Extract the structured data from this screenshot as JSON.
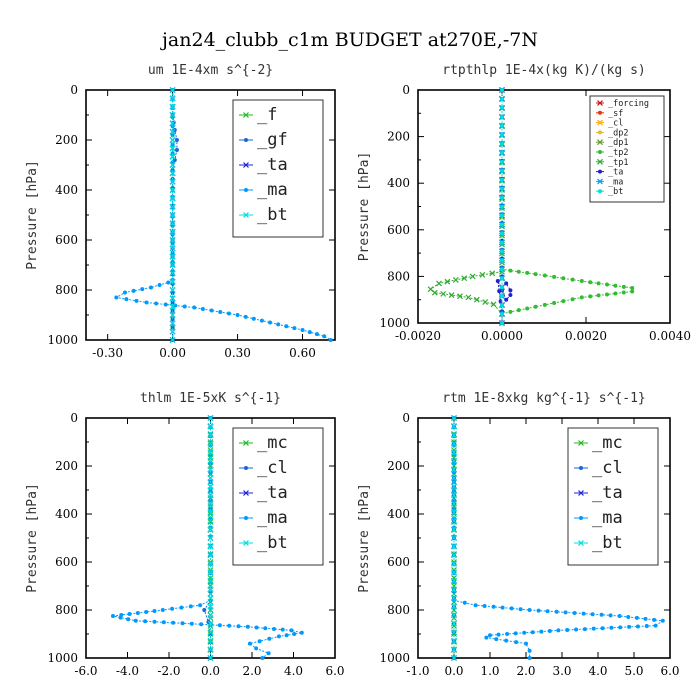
{
  "title": "jan24_clubb_c1m  BUDGET at270E,-7N",
  "chart_data": [
    {
      "type": "line",
      "title": "um   1E-4xm s^{-2}",
      "ylabel": "Pressure [hPa]",
      "xlim": [
        -0.4,
        0.75
      ],
      "ylim": [
        1000,
        0
      ],
      "y_reversed": true,
      "xticks": [
        "-0.30",
        "0.00",
        "0.30",
        "0.60"
      ],
      "xtick_values": [
        -0.3,
        0,
        0.3,
        0.6
      ],
      "yticks": [
        "0",
        "200",
        "400",
        "600",
        "800",
        "1000"
      ],
      "ytick_values": [
        0,
        200,
        400,
        600,
        800,
        1000
      ],
      "legend_position": "top-right",
      "legend_size": "large",
      "series": [
        {
          "name": "_f",
          "color": "#22bb22",
          "x": [
            0,
            0,
            0,
            0,
            0,
            0,
            0,
            0,
            0,
            0,
            0,
            0
          ],
          "y": [
            0,
            100,
            200,
            300,
            400,
            500,
            600,
            700,
            800,
            900,
            950,
            1000
          ]
        },
        {
          "name": "_gf",
          "color": "#1a66dd",
          "x": [
            0,
            0,
            0.01,
            0.02,
            0.02,
            0.01,
            0,
            0,
            0,
            0,
            0,
            0
          ],
          "y": [
            0,
            100,
            160,
            200,
            240,
            280,
            320,
            500,
            700,
            850,
            950,
            1000
          ]
        },
        {
          "name": "_ta",
          "color": "#2222dd",
          "x": [
            0,
            0,
            0,
            0,
            0,
            0
          ],
          "y": [
            0,
            200,
            400,
            600,
            800,
            1000
          ]
        },
        {
          "name": "_ma",
          "color": "#0099ff",
          "x": [
            0,
            0,
            -0.02,
            -0.1,
            -0.22,
            -0.26,
            -0.12,
            0.1,
            0.3,
            0.45,
            0.6,
            0.7,
            0.73
          ],
          "y": [
            0,
            760,
            770,
            790,
            810,
            830,
            850,
            870,
            900,
            930,
            960,
            985,
            1000
          ]
        },
        {
          "name": "_bt",
          "color": "#00dddd",
          "x": [
            0,
            0,
            0,
            0,
            0,
            0
          ],
          "y": [
            0,
            200,
            400,
            600,
            800,
            1000
          ]
        }
      ]
    },
    {
      "type": "line",
      "title": "rtpthlp   1E-4x(kg K)/(kg s)",
      "ylabel": "Pressure [hPa]",
      "xlim": [
        -0.002,
        0.004
      ],
      "ylim": [
        1000,
        0
      ],
      "y_reversed": true,
      "xticks": [
        "-0.0020",
        "0.0000",
        "0.0020",
        "0.0040"
      ],
      "xtick_values": [
        -0.002,
        0,
        0.002,
        0.004
      ],
      "yticks": [
        "0",
        "200",
        "400",
        "600",
        "800",
        "1000"
      ],
      "ytick_values": [
        0,
        200,
        400,
        600,
        800,
        1000
      ],
      "legend_position": "top-right",
      "legend_size": "small",
      "series": [
        {
          "name": "_forcing",
          "color": "#cc1111",
          "x": [
            0,
            0
          ],
          "y": [
            0,
            1000
          ]
        },
        {
          "name": "_sf",
          "color": "#ee3300",
          "x": [
            0,
            0
          ],
          "y": [
            0,
            1000
          ]
        },
        {
          "name": "_cl",
          "color": "#ffaa00",
          "x": [
            0,
            0
          ],
          "y": [
            0,
            1000
          ]
        },
        {
          "name": "_dp2",
          "color": "#ddbb33",
          "x": [
            0,
            0
          ],
          "y": [
            0,
            1000
          ]
        },
        {
          "name": "_dp1",
          "color": "#669933",
          "x": [
            0,
            0
          ],
          "y": [
            0,
            1000
          ]
        },
        {
          "name": "_tp2",
          "color": "#33bb33",
          "x": [
            0,
            0,
            0.0008,
            0.0019,
            0.0031,
            0.0031,
            0.0019,
            0.0008,
            0,
            0
          ],
          "y": [
            0,
            770,
            790,
            820,
            850,
            865,
            890,
            930,
            960,
            1000
          ]
        },
        {
          "name": "_tp1",
          "color": "#33aa33",
          "x": [
            0,
            0,
            -0.0007,
            -0.0015,
            -0.0017,
            -0.0016,
            -0.0008,
            -0.0002,
            0,
            0
          ],
          "y": [
            0,
            780,
            800,
            830,
            855,
            870,
            890,
            920,
            960,
            1000
          ]
        },
        {
          "name": "_ta",
          "color": "#2222cc",
          "x": [
            0,
            0,
            0.0001,
            0.0002,
            0.0002,
            0.0001,
            -0.0001,
            0,
            0
          ],
          "y": [
            0,
            800,
            830,
            860,
            880,
            900,
            820,
            950,
            1000
          ]
        },
        {
          "name": "_ma",
          "color": "#0099ff",
          "x": [
            0,
            0
          ],
          "y": [
            0,
            1000
          ]
        },
        {
          "name": "_bt",
          "color": "#00dddd",
          "x": [
            0,
            0
          ],
          "y": [
            0,
            1000
          ]
        }
      ]
    },
    {
      "type": "line",
      "title": "thlm   1E-5xK s^{-1}",
      "ylabel": "Pressure [hPa]",
      "xlim": [
        -6,
        6
      ],
      "ylim": [
        1000,
        0
      ],
      "y_reversed": true,
      "xticks": [
        "-6.0",
        "-4.0",
        "-2.0",
        "0.0",
        "2.0",
        "4.0",
        "6.0"
      ],
      "xtick_values": [
        -6,
        -4,
        -2,
        0,
        2,
        4,
        6
      ],
      "yticks": [
        "0",
        "200",
        "400",
        "600",
        "800",
        "1000"
      ],
      "ytick_values": [
        0,
        200,
        400,
        600,
        800,
        1000
      ],
      "legend_position": "top-right",
      "legend_size": "large",
      "series": [
        {
          "name": "_mc",
          "color": "#22bb22",
          "x": [
            0,
            0,
            0,
            0,
            0,
            0,
            0,
            0,
            0,
            0,
            0
          ],
          "y": [
            0,
            100,
            200,
            300,
            400,
            500,
            600,
            700,
            800,
            900,
            1000
          ]
        },
        {
          "name": "_cl",
          "color": "#1a66dd",
          "x": [
            0,
            0,
            -0.3,
            -0.1,
            0,
            0
          ],
          "y": [
            0,
            760,
            800,
            850,
            900,
            1000
          ]
        },
        {
          "name": "_ta",
          "color": "#2222dd",
          "x": [
            0,
            0,
            0,
            0,
            0
          ],
          "y": [
            0,
            250,
            500,
            750,
            1000
          ]
        },
        {
          "name": "_ma",
          "color": "#0099ff",
          "x": [
            0,
            0,
            -0.5,
            -2.3,
            -4.7,
            -3.6,
            1.8,
            3.9,
            4.4,
            3.3,
            1.9,
            2.2,
            2.8,
            2.5
          ],
          "y": [
            0,
            760,
            780,
            800,
            825,
            845,
            870,
            885,
            895,
            910,
            940,
            960,
            980,
            1000
          ]
        },
        {
          "name": "_bt",
          "color": "#00dddd",
          "x": [
            0,
            0,
            0,
            0,
            0
          ],
          "y": [
            0,
            250,
            500,
            750,
            1000
          ]
        }
      ]
    },
    {
      "type": "line",
      "title": "rtm   1E-8xkg kg^{-1} s^{-1}",
      "ylabel": "Pressure [hPa]",
      "xlim": [
        -1,
        6
      ],
      "ylim": [
        1000,
        0
      ],
      "y_reversed": true,
      "xticks": [
        "-1.0",
        "0.0",
        "1.0",
        "2.0",
        "3.0",
        "4.0",
        "5.0",
        "6.0"
      ],
      "xtick_values": [
        -1,
        0,
        1,
        2,
        3,
        4,
        5,
        6
      ],
      "yticks": [
        "0",
        "200",
        "400",
        "600",
        "800",
        "1000"
      ],
      "ytick_values": [
        0,
        200,
        400,
        600,
        800,
        1000
      ],
      "legend_position": "top-right",
      "legend_size": "large",
      "series": [
        {
          "name": "_mc",
          "color": "#22bb22",
          "x": [
            0,
            0,
            0,
            0,
            0,
            0,
            0,
            0,
            0,
            0,
            0
          ],
          "y": [
            0,
            100,
            200,
            300,
            400,
            500,
            600,
            700,
            800,
            900,
            1000
          ]
        },
        {
          "name": "_cl",
          "color": "#1a66dd",
          "x": [
            0,
            0,
            0,
            0,
            0
          ],
          "y": [
            0,
            250,
            500,
            750,
            1000
          ]
        },
        {
          "name": "_ta",
          "color": "#2222dd",
          "x": [
            0,
            0,
            0,
            0,
            0
          ],
          "y": [
            0,
            250,
            500,
            750,
            1000
          ]
        },
        {
          "name": "_ma",
          "color": "#0099ff",
          "x": [
            0,
            0,
            0.6,
            2.1,
            4.6,
            5.8,
            5.6,
            2.9,
            1.0,
            0.9,
            2.0,
            2.1,
            2.1
          ],
          "y": [
            0,
            760,
            780,
            800,
            825,
            845,
            865,
            885,
            905,
            915,
            940,
            970,
            1000
          ]
        },
        {
          "name": "_bt",
          "color": "#00dddd",
          "x": [
            0,
            0,
            0,
            0,
            0
          ],
          "y": [
            0,
            250,
            500,
            750,
            1000
          ]
        }
      ]
    }
  ]
}
